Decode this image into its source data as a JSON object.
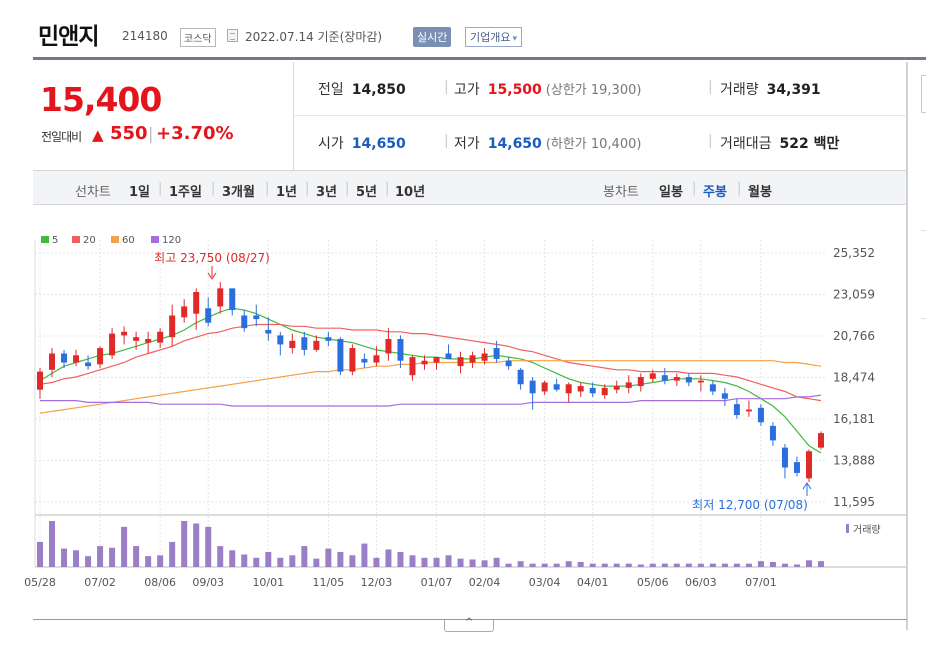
{
  "header": {
    "stock_name": "민앤지",
    "stock_code": "214180",
    "market": "코스닥",
    "base_date": "2022.07.14 기준(장마감)",
    "realtime_label": "실시간",
    "company_info_label": "기업개요",
    "company_info_arrow": "▾"
  },
  "price": {
    "current": "15,400",
    "change_label": "전일대비",
    "change_arrow": "▲",
    "change_value": "550",
    "change_sep": "|",
    "change_rate": "+3.70%"
  },
  "quote": {
    "prev_close_label": "전일",
    "prev_close": "14,850",
    "high_label": "고가",
    "high": "15,500",
    "upper_limit": "(상한가 19,300)",
    "volume_label": "거래량",
    "volume": "34,391",
    "open_label": "시가",
    "open": "14,650",
    "low_label": "저가",
    "low": "14,650",
    "lower_limit": "(하한가 10,400)",
    "amount_label": "거래대금",
    "amount": "522 백만",
    "sep": "|"
  },
  "period_bar": {
    "line_label": "선차트",
    "line_periods": [
      "1일",
      "1주일",
      "3개월",
      "1년",
      "3년",
      "5년",
      "10년"
    ],
    "candle_label": "봉차트",
    "candle_periods": [
      "일봉",
      "주봉",
      "월봉"
    ],
    "active_candle": "주봉",
    "sep": "|"
  },
  "chart_data": {
    "type": "candlestick",
    "legend": [
      {
        "name": "5",
        "color": "#3dbb3d"
      },
      {
        "name": "20",
        "color": "#f06060"
      },
      {
        "name": "60",
        "color": "#f5a04a"
      },
      {
        "name": "120",
        "color": "#a56ee0"
      }
    ],
    "y_ticks": [
      "25,352",
      "23,059",
      "20,766",
      "18,474",
      "16,181",
      "13,888",
      "11,595"
    ],
    "ylim": [
      11595,
      25352
    ],
    "x_ticks": [
      "05/28",
      "07/02",
      "08/06",
      "09/03",
      "10/01",
      "11/05",
      "12/03",
      "01/07",
      "02/04",
      "03/04",
      "04/01",
      "05/06",
      "06/03",
      "07/01"
    ],
    "high_annotation": "최고 23,750 (08/27)",
    "low_annotation": "최저 12,700 (07/08)",
    "volume_label": "거래량",
    "colors": {
      "up": "#e02a2a",
      "down": "#2b6fde",
      "volume": "#9b7fc6"
    },
    "candles": [
      {
        "o": 17800,
        "h": 19000,
        "l": 17300,
        "c": 18800
      },
      {
        "o": 18900,
        "h": 20100,
        "l": 18500,
        "c": 19800
      },
      {
        "o": 19800,
        "h": 20000,
        "l": 19000,
        "c": 19300
      },
      {
        "o": 19300,
        "h": 20000,
        "l": 19100,
        "c": 19700
      },
      {
        "o": 19300,
        "h": 19700,
        "l": 18900,
        "c": 19100
      },
      {
        "o": 19200,
        "h": 20200,
        "l": 19000,
        "c": 20100
      },
      {
        "o": 19700,
        "h": 21200,
        "l": 19500,
        "c": 20900
      },
      {
        "o": 20800,
        "h": 21300,
        "l": 20300,
        "c": 21000
      },
      {
        "o": 20500,
        "h": 21000,
        "l": 20000,
        "c": 20700
      },
      {
        "o": 20400,
        "h": 21000,
        "l": 19800,
        "c": 20600
      },
      {
        "o": 20400,
        "h": 21200,
        "l": 20100,
        "c": 21000
      },
      {
        "o": 20700,
        "h": 22500,
        "l": 20200,
        "c": 21900
      },
      {
        "o": 21800,
        "h": 22800,
        "l": 21500,
        "c": 22400
      },
      {
        "o": 22000,
        "h": 23400,
        "l": 21100,
        "c": 23200
      },
      {
        "o": 22300,
        "h": 22900,
        "l": 21300,
        "c": 21500
      },
      {
        "o": 22400,
        "h": 23750,
        "l": 22000,
        "c": 23400
      },
      {
        "o": 23400,
        "h": 23400,
        "l": 21900,
        "c": 22200
      },
      {
        "o": 21900,
        "h": 22200,
        "l": 21000,
        "c": 21200
      },
      {
        "o": 21900,
        "h": 22500,
        "l": 21300,
        "c": 21700
      },
      {
        "o": 21100,
        "h": 21800,
        "l": 20500,
        "c": 20900
      },
      {
        "o": 20800,
        "h": 21000,
        "l": 19700,
        "c": 20300
      },
      {
        "o": 20100,
        "h": 20900,
        "l": 19800,
        "c": 20500
      },
      {
        "o": 20700,
        "h": 21000,
        "l": 19700,
        "c": 20000
      },
      {
        "o": 20000,
        "h": 20800,
        "l": 19900,
        "c": 20500
      },
      {
        "o": 20700,
        "h": 21000,
        "l": 20200,
        "c": 20500
      },
      {
        "o": 20600,
        "h": 20700,
        "l": 18600,
        "c": 18800
      },
      {
        "o": 18800,
        "h": 20300,
        "l": 18600,
        "c": 20100
      },
      {
        "o": 19500,
        "h": 19800,
        "l": 19000,
        "c": 19300
      },
      {
        "o": 19300,
        "h": 20200,
        "l": 19100,
        "c": 19700
      },
      {
        "o": 19800,
        "h": 21200,
        "l": 19400,
        "c": 20600
      },
      {
        "o": 20600,
        "h": 20800,
        "l": 19000,
        "c": 19400
      },
      {
        "o": 18600,
        "h": 19700,
        "l": 18300,
        "c": 19600
      },
      {
        "o": 19200,
        "h": 19700,
        "l": 18900,
        "c": 19400
      },
      {
        "o": 19300,
        "h": 19600,
        "l": 18900,
        "c": 19600
      },
      {
        "o": 19800,
        "h": 20300,
        "l": 19500,
        "c": 19500
      },
      {
        "o": 19100,
        "h": 19900,
        "l": 18700,
        "c": 19600
      },
      {
        "o": 19300,
        "h": 19900,
        "l": 19000,
        "c": 19700
      },
      {
        "o": 19400,
        "h": 20100,
        "l": 19200,
        "c": 19800
      },
      {
        "o": 20100,
        "h": 20500,
        "l": 19300,
        "c": 19500
      },
      {
        "o": 19400,
        "h": 19600,
        "l": 18900,
        "c": 19100
      },
      {
        "o": 18900,
        "h": 19000,
        "l": 17800,
        "c": 18100
      },
      {
        "o": 18300,
        "h": 18500,
        "l": 16700,
        "c": 17600
      },
      {
        "o": 17700,
        "h": 18300,
        "l": 17500,
        "c": 18200
      },
      {
        "o": 18100,
        "h": 18400,
        "l": 17700,
        "c": 17800
      },
      {
        "o": 17600,
        "h": 18200,
        "l": 17100,
        "c": 18100
      },
      {
        "o": 17700,
        "h": 18200,
        "l": 17400,
        "c": 18000
      },
      {
        "o": 17900,
        "h": 18200,
        "l": 17400,
        "c": 17600
      },
      {
        "o": 17500,
        "h": 18100,
        "l": 17300,
        "c": 17900
      },
      {
        "o": 17800,
        "h": 18300,
        "l": 17600,
        "c": 18000
      },
      {
        "o": 17900,
        "h": 18600,
        "l": 17600,
        "c": 18200
      },
      {
        "o": 18000,
        "h": 18700,
        "l": 17700,
        "c": 18500
      },
      {
        "o": 18400,
        "h": 18900,
        "l": 18200,
        "c": 18700
      },
      {
        "o": 18600,
        "h": 19000,
        "l": 18100,
        "c": 18300
      },
      {
        "o": 18300,
        "h": 18700,
        "l": 18000,
        "c": 18500
      },
      {
        "o": 18500,
        "h": 18700,
        "l": 18000,
        "c": 18200
      },
      {
        "o": 18200,
        "h": 18600,
        "l": 17700,
        "c": 18300
      },
      {
        "o": 18100,
        "h": 18300,
        "l": 17500,
        "c": 17700
      },
      {
        "o": 17600,
        "h": 17900,
        "l": 16900,
        "c": 17300
      },
      {
        "o": 17000,
        "h": 17300,
        "l": 16200,
        "c": 16400
      },
      {
        "o": 16600,
        "h": 17200,
        "l": 16300,
        "c": 16700
      },
      {
        "o": 16800,
        "h": 17000,
        "l": 15800,
        "c": 16000
      },
      {
        "o": 15800,
        "h": 16000,
        "l": 14700,
        "c": 15000
      },
      {
        "o": 14600,
        "h": 14800,
        "l": 12900,
        "c": 13500
      },
      {
        "o": 13800,
        "h": 14100,
        "l": 13000,
        "c": 13200
      },
      {
        "o": 12900,
        "h": 14500,
        "l": 12700,
        "c": 14400
      },
      {
        "o": 14600,
        "h": 15500,
        "l": 14500,
        "c": 15400
      }
    ],
    "volumes": [
      30,
      55,
      22,
      20,
      13,
      25,
      23,
      48,
      25,
      13,
      14,
      30,
      55,
      52,
      48,
      25,
      20,
      15,
      11,
      18,
      11,
      14,
      25,
      10,
      22,
      18,
      14,
      28,
      11,
      21,
      18,
      14,
      11,
      11,
      14,
      10,
      9,
      8,
      11,
      4,
      7,
      4,
      4,
      4,
      7,
      6,
      4,
      4,
      4,
      4,
      3,
      4,
      4,
      4,
      4,
      4,
      4,
      4,
      4,
      4,
      7,
      6,
      4,
      3,
      8,
      7
    ],
    "ma5": [
      18300,
      18700,
      19100,
      19300,
      19500,
      19700,
      19800,
      20000,
      20200,
      20400,
      20600,
      20800,
      21100,
      21500,
      21800,
      22100,
      22300,
      22200,
      22000,
      21700,
      21400,
      21100,
      20900,
      20700,
      20600,
      20500,
      20400,
      20200,
      20000,
      19900,
      19800,
      19700,
      19600,
      19600,
      19500,
      19500,
      19500,
      19600,
      19700,
      19600,
      19500,
      19300,
      19000,
      18700,
      18400,
      18200,
      18100,
      18000,
      18000,
      18000,
      18100,
      18200,
      18300,
      18400,
      18400,
      18400,
      18300,
      18200,
      18000,
      17700,
      17300,
      16900,
      16300,
      15500,
      14700,
      14300
    ],
    "ma20": [
      18100,
      18200,
      18400,
      18500,
      18700,
      18900,
      19100,
      19300,
      19600,
      19800,
      20000,
      20200,
      20500,
      20700,
      20900,
      21000,
      21200,
      21300,
      21400,
      21400,
      21400,
      21300,
      21300,
      21200,
      21200,
      21200,
      21100,
      21100,
      21100,
      21000,
      21000,
      20900,
      20900,
      20800,
      20700,
      20600,
      20500,
      20400,
      20300,
      20200,
      20000,
      19900,
      19700,
      19500,
      19300,
      19200,
      19100,
      19000,
      18900,
      18900,
      18800,
      18800,
      18800,
      18800,
      18700,
      18700,
      18700,
      18600,
      18500,
      18300,
      18100,
      17900,
      17700,
      17400,
      17300,
      17200
    ],
    "ma60": [
      16500,
      16600,
      16700,
      16800,
      16900,
      17000,
      17100,
      17200,
      17300,
      17400,
      17500,
      17600,
      17700,
      17800,
      17900,
      18000,
      18100,
      18200,
      18300,
      18400,
      18500,
      18600,
      18700,
      18800,
      18800,
      18900,
      18900,
      19000,
      19100,
      19100,
      19200,
      19200,
      19300,
      19300,
      19300,
      19300,
      19300,
      19300,
      19300,
      19400,
      19400,
      19400,
      19400,
      19400,
      19400,
      19400,
      19400,
      19400,
      19400,
      19400,
      19400,
      19400,
      19400,
      19400,
      19400,
      19400,
      19400,
      19400,
      19400,
      19400,
      19400,
      19400,
      19300,
      19300,
      19200,
      19100
    ],
    "ma120": [
      17200,
      17200,
      17200,
      17200,
      17100,
      17100,
      17100,
      17100,
      17100,
      17100,
      17000,
      17000,
      17000,
      17000,
      17000,
      17000,
      16900,
      16900,
      16900,
      16900,
      16900,
      16900,
      16900,
      16900,
      16900,
      16900,
      16900,
      16900,
      16900,
      16900,
      17000,
      17000,
      17000,
      17000,
      17000,
      17000,
      17000,
      17000,
      17000,
      17000,
      17000,
      17100,
      17100,
      17100,
      17100,
      17100,
      17100,
      17100,
      17100,
      17100,
      17200,
      17200,
      17200,
      17200,
      17200,
      17200,
      17200,
      17200,
      17300,
      17300,
      17300,
      17300,
      17300,
      17400,
      17400,
      17500
    ]
  }
}
